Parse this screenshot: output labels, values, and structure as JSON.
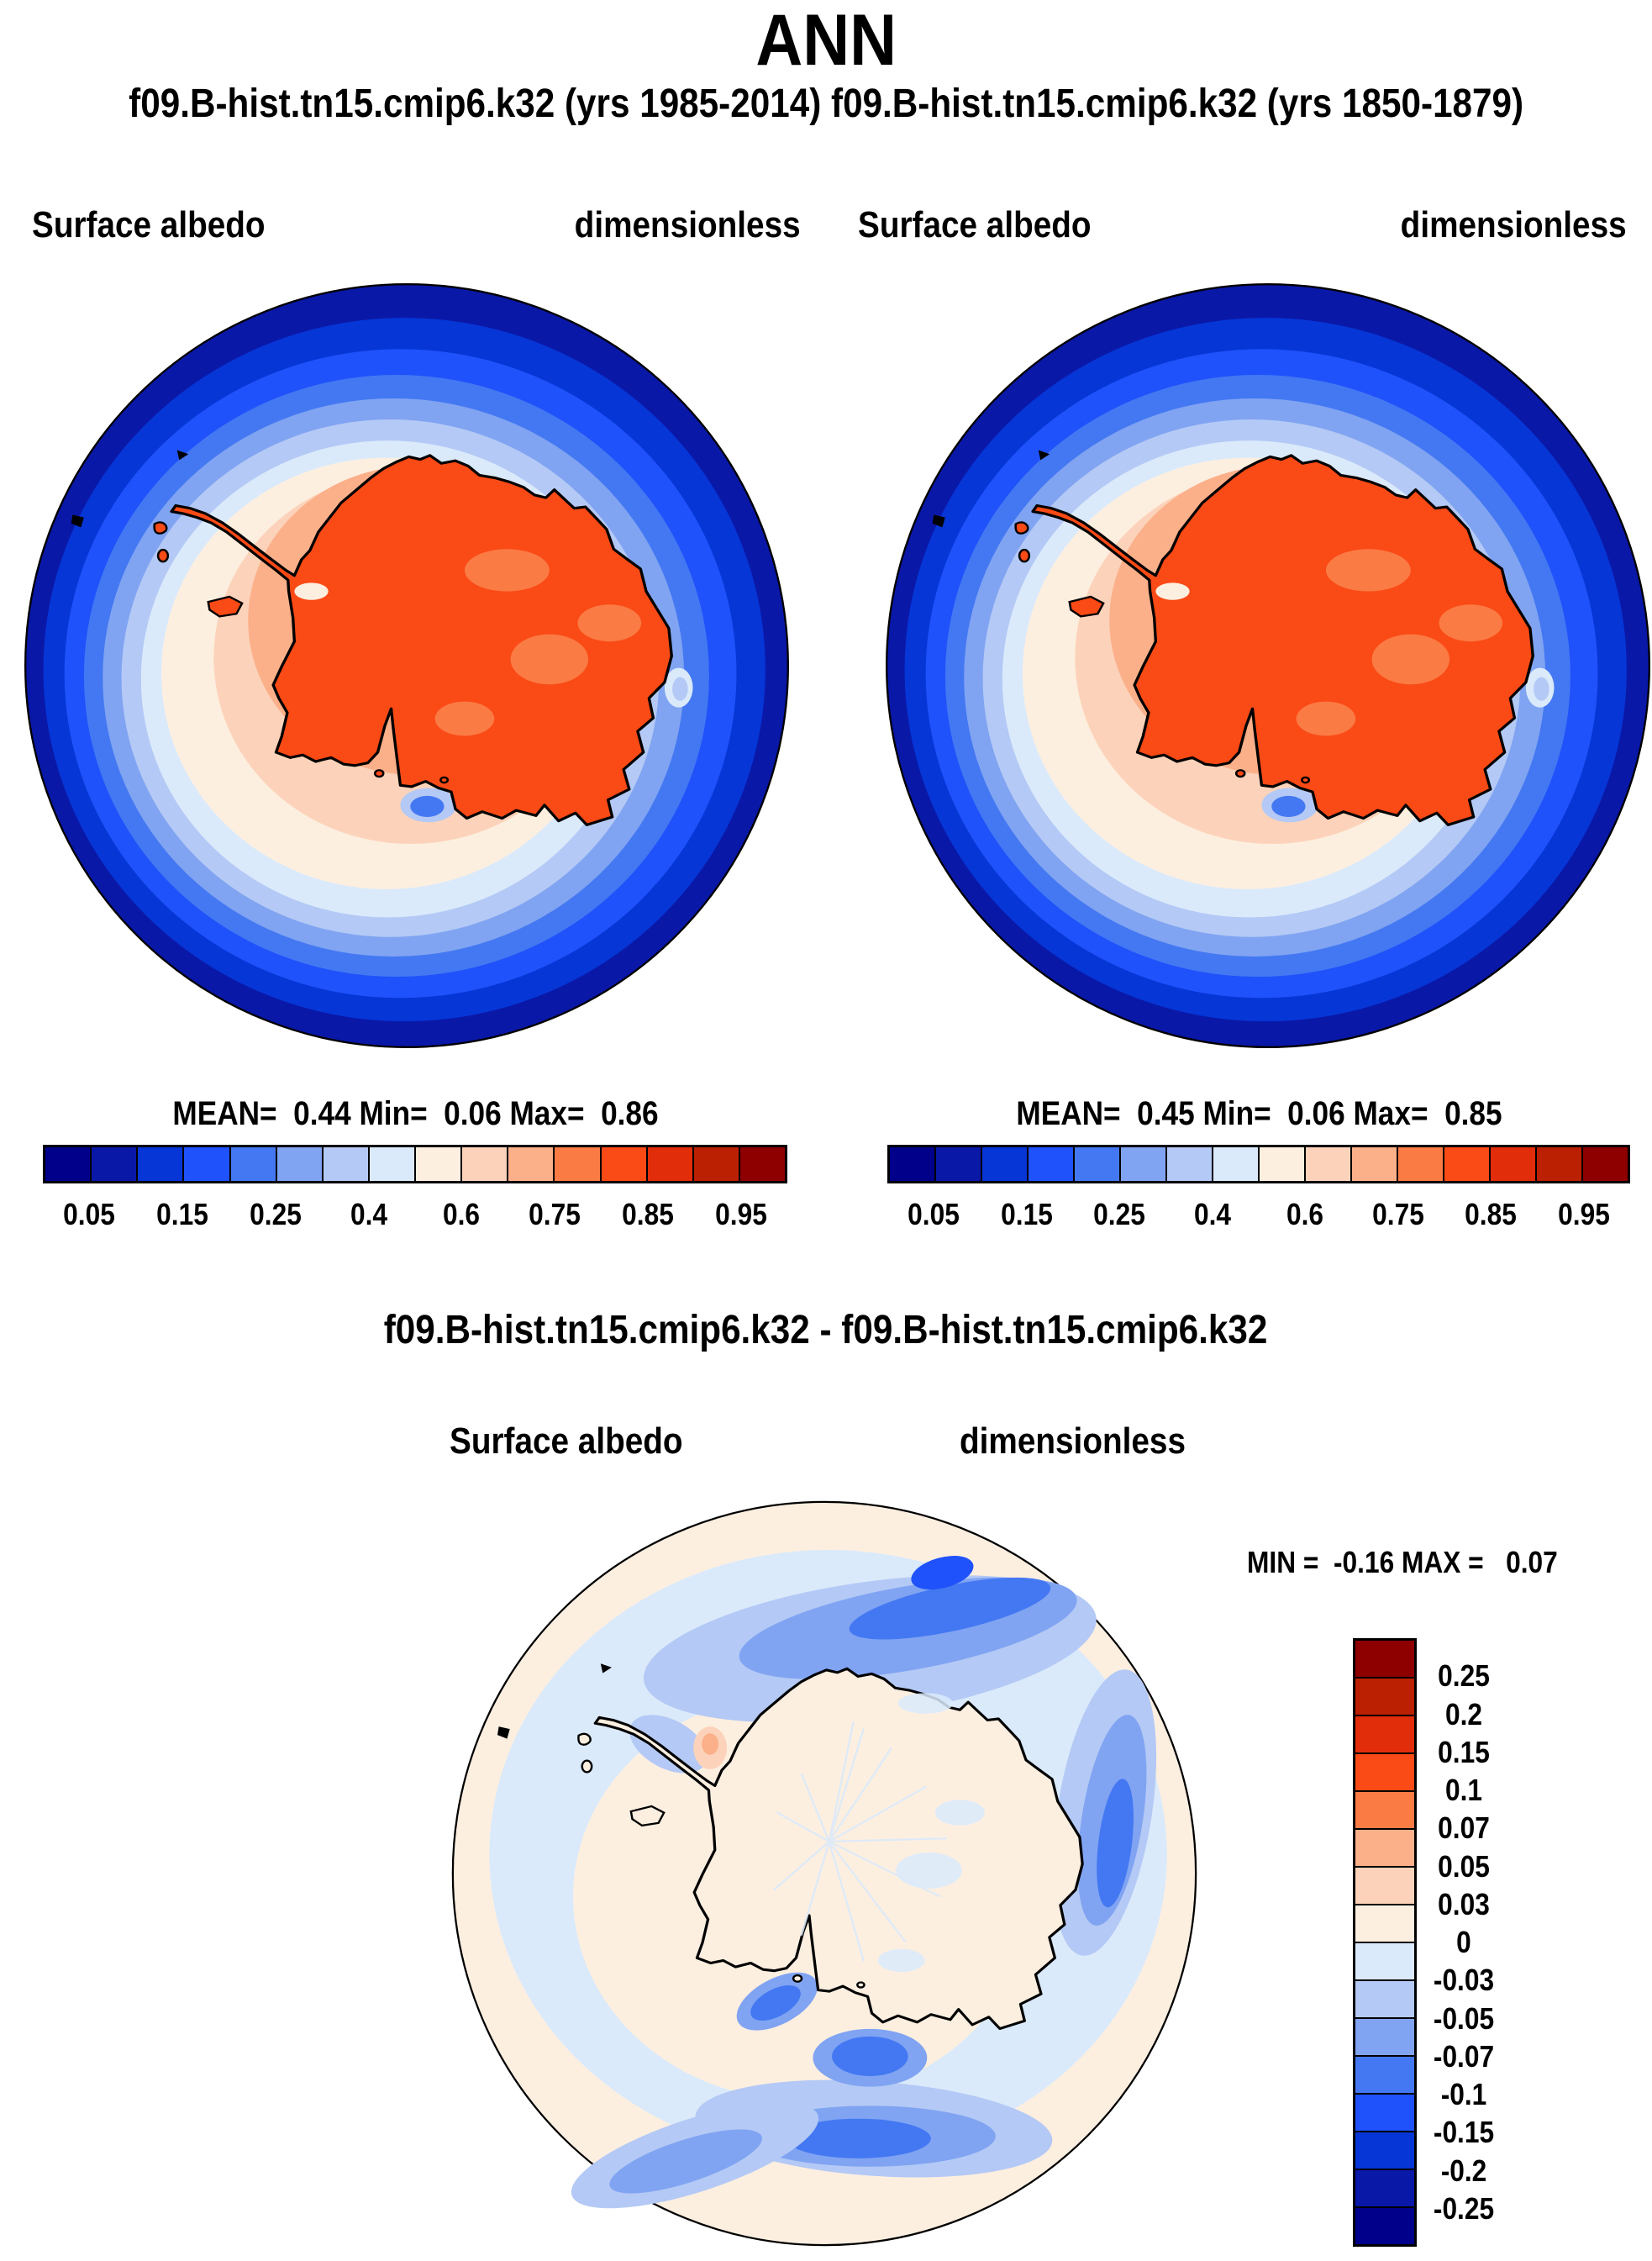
{
  "header": {
    "season": "ANN",
    "cases_line": "f09.B-hist.tn15.cmip6.k32 (yrs 1985-2014) f09.B-hist.tn15.cmip6.k32 (yrs 1850-1879)"
  },
  "panels": [
    {
      "variable": "Surface albedo",
      "units": "dimensionless",
      "stats": "MEAN=  0.44 Min=  0.06 Max=  0.86"
    },
    {
      "variable": "Surface albedo",
      "units": "dimensionless",
      "stats": "MEAN=  0.45 Min=  0.06 Max=  0.85"
    }
  ],
  "colorbar": {
    "palette": [
      "#00008B",
      "#0A18A8",
      "#0636D6",
      "#1F52FA",
      "#4478F2",
      "#80A4F2",
      "#B4C9F5",
      "#DAEAFB",
      "#FDEFE0",
      "#FCD3BA",
      "#FBB08A",
      "#FB7B45",
      "#FA4A15",
      "#E22D0A",
      "#BB2002",
      "#8E0000"
    ],
    "tick_labels": [
      "0.05",
      "0.15",
      "0.25",
      "0.4",
      "0.6",
      "0.75",
      "0.85",
      "0.95"
    ]
  },
  "diff": {
    "title": "f09.B-hist.tn15.cmip6.k32 - f09.B-hist.tn15.cmip6.k32",
    "variable": "Surface albedo",
    "units": "dimensionless",
    "stats": "MIN =  -0.16 MAX =   0.07",
    "tick_labels": [
      "0.25",
      "0.2",
      "0.15",
      "0.1",
      "0.07",
      "0.05",
      "0.03",
      "0",
      "-0.03",
      "-0.05",
      "-0.07",
      "-0.1",
      "-0.15",
      "-0.2",
      "-0.25"
    ]
  },
  "chart_data": [
    {
      "type": "heatmap",
      "subtype": "south-polar-stereographic-contour-map",
      "title": "f09.B-hist.tn15.cmip6.k32 (yrs 1985-2014)",
      "variable": "Surface albedo",
      "units": "dimensionless",
      "region": "Antarctica / Southern Ocean",
      "stats": {
        "mean": 0.44,
        "min": 0.06,
        "max": 0.86
      },
      "contour_levels": [
        0.05,
        0.1,
        0.15,
        0.2,
        0.25,
        0.3,
        0.4,
        0.5,
        0.6,
        0.7,
        0.75,
        0.8,
        0.85,
        0.9,
        0.95
      ],
      "labeled_levels": [
        0.05,
        0.15,
        0.25,
        0.4,
        0.6,
        0.75,
        0.85,
        0.95
      ],
      "palette": "see colorbar.palette (blue = low albedo ocean, orange/red = high albedo ice sheet)",
      "legend_position": "bottom"
    },
    {
      "type": "heatmap",
      "subtype": "south-polar-stereographic-contour-map",
      "title": "f09.B-hist.tn15.cmip6.k32 (yrs 1850-1879)",
      "variable": "Surface albedo",
      "units": "dimensionless",
      "region": "Antarctica / Southern Ocean",
      "stats": {
        "mean": 0.45,
        "min": 0.06,
        "max": 0.85
      },
      "contour_levels": [
        0.05,
        0.1,
        0.15,
        0.2,
        0.25,
        0.3,
        0.4,
        0.5,
        0.6,
        0.7,
        0.75,
        0.8,
        0.85,
        0.9,
        0.95
      ],
      "labeled_levels": [
        0.05,
        0.15,
        0.25,
        0.4,
        0.6,
        0.75,
        0.85,
        0.95
      ],
      "palette": "see colorbar.palette",
      "legend_position": "bottom"
    },
    {
      "type": "heatmap",
      "subtype": "south-polar-stereographic-difference-map",
      "title": "f09.B-hist.tn15.cmip6.k32 - f09.B-hist.tn15.cmip6.k32",
      "variable": "Surface albedo",
      "units": "dimensionless",
      "region": "Antarctica / Southern Ocean",
      "stats": {
        "min": -0.16,
        "max": 0.07
      },
      "contour_levels": [
        -0.25,
        -0.2,
        -0.15,
        -0.1,
        -0.07,
        -0.05,
        -0.03,
        0,
        0.03,
        0.05,
        0.07,
        0.1,
        0.15,
        0.2,
        0.25
      ],
      "palette": "see colorbar.palette (reversed vertically in legend; blue = albedo decrease)",
      "legend_position": "right"
    }
  ]
}
